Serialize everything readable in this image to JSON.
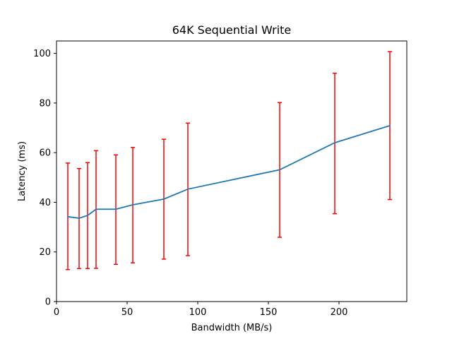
{
  "chart_data": {
    "type": "line",
    "title": "64K  Sequential Write",
    "xlabel": "Bandwidth (MB/s)",
    "ylabel": "Latency (ms)",
    "xlim": [
      0,
      248
    ],
    "ylim": [
      0,
      105
    ],
    "xticks": [
      0,
      50,
      100,
      150,
      200
    ],
    "yticks": [
      0,
      20,
      40,
      60,
      80,
      100
    ],
    "grid": false,
    "series": [
      {
        "color": "#1f77b4",
        "x": [
          8,
          16,
          22,
          28,
          42,
          54,
          76,
          93,
          158,
          197,
          236
        ],
        "y": [
          34.2,
          33.6,
          34.7,
          37.2,
          37.2,
          39.0,
          41.3,
          45.3,
          53.1,
          64.0,
          70.9
        ],
        "error_low": [
          12.9,
          13.3,
          13.3,
          13.4,
          15.0,
          15.6,
          17.1,
          18.5,
          25.9,
          35.4,
          41.1
        ],
        "error_high": [
          55.8,
          53.6,
          56.0,
          60.8,
          59.1,
          62.1,
          65.4,
          71.9,
          80.2,
          92.0,
          100.7
        ],
        "error_color": "#ff0000"
      }
    ]
  }
}
